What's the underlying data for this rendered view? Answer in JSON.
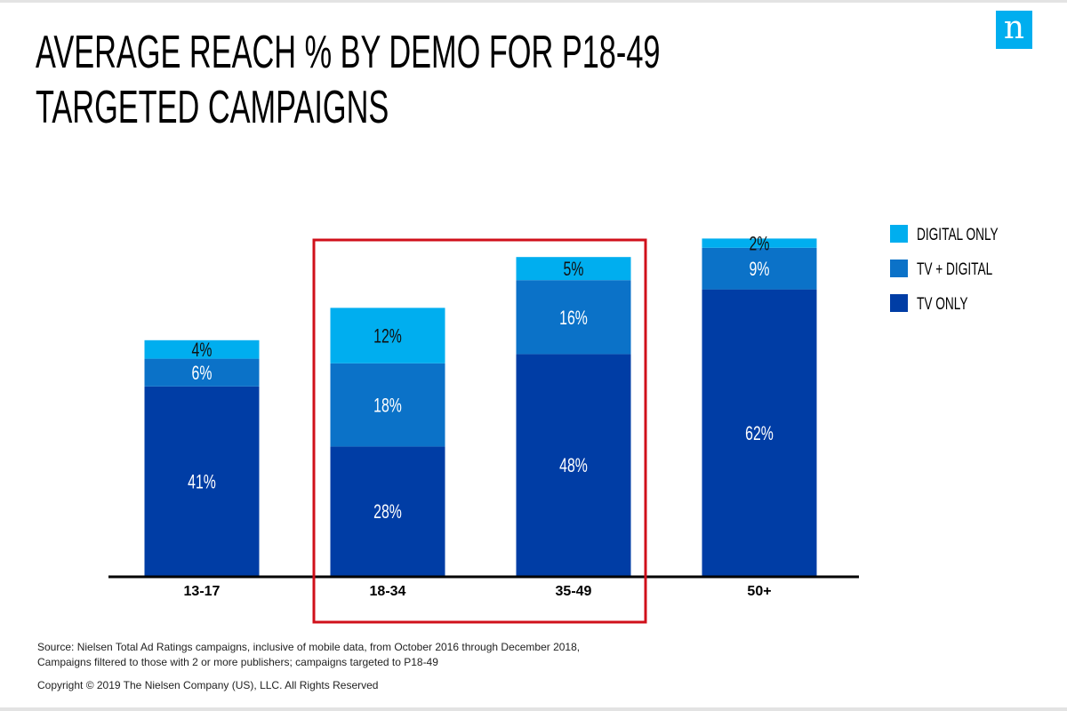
{
  "title_lines": [
    "AVERAGE REACH % BY DEMO FOR P18-49",
    "TARGETED CAMPAIGNS"
  ],
  "logo": {
    "letter": "n",
    "color": "#00aeef"
  },
  "colors": {
    "tv_only": "#003da5",
    "tv_digital": "#0b72c8",
    "digital_only": "#00aeef",
    "highlight": "#d0101b",
    "axis": "#000000"
  },
  "chart_data": {
    "type": "bar",
    "stacked": true,
    "categories": [
      "13-17",
      "18-34",
      "35-49",
      "50+"
    ],
    "series": [
      {
        "name": "TV ONLY",
        "values": [
          41,
          28,
          48,
          62
        ],
        "labels": [
          "41%",
          "28%",
          "48%",
          "62%"
        ],
        "color": "#003da5"
      },
      {
        "name": "TV + DIGITAL",
        "values": [
          6,
          18,
          16,
          9
        ],
        "labels": [
          "6%",
          "18%",
          "16%",
          "9%"
        ],
        "color": "#0b72c8"
      },
      {
        "name": "DIGITAL ONLY",
        "values": [
          4,
          12,
          5,
          2
        ],
        "labels": [
          "4%",
          "12%",
          "5%",
          "2%"
        ],
        "color": "#00aeef"
      }
    ],
    "legend_order": [
      "DIGITAL ONLY",
      "TV + DIGITAL",
      "TV ONLY"
    ],
    "legend_position": "right",
    "highlighted_categories": [
      "18-34",
      "35-49"
    ],
    "ylim": [
      0,
      74
    ],
    "grid": false
  },
  "footnotes": {
    "source_lines": [
      "Source: Nielsen Total Ad Ratings campaigns, inclusive of mobile data, from October 2016 through December 2018,",
      "Campaigns filtered to those with 2 or more publishers; campaigns targeted to P18-49"
    ],
    "copyright": "Copyright © 2019 The Nielsen Company (US), LLC. All Rights Reserved"
  }
}
